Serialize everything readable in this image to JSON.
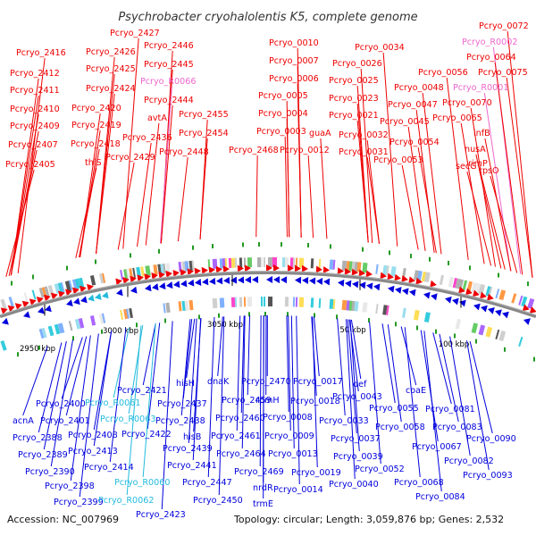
{
  "title": "Psychrobacter cryohalolentis K5, complete genome",
  "footer": {
    "accession": "Accession: NC_007969",
    "summary": "Topology: circular; Length: 3,059,876 bp; Genes: 2,532"
  },
  "colors": {
    "forward": "#ee0000",
    "reverse": "#0000dd",
    "rna_forward": "#ee66cc",
    "rna_reverse": "#22bbdd",
    "backbone": "#888888",
    "green_mark": "#229922"
  },
  "ticks": [
    {
      "text": "2950 kbp"
    },
    {
      "text": "3000 kbp"
    },
    {
      "text": "3050 kbp"
    },
    {
      "text": "50 kbp"
    },
    {
      "text": "100 kbp"
    }
  ],
  "top_labels": [
    {
      "text": "Pcryo_2427",
      "color": "#ee0000"
    },
    {
      "text": "Pcryo_2416",
      "color": "#ee0000"
    },
    {
      "text": "Pcryo_2426",
      "color": "#ee0000"
    },
    {
      "text": "Pcryo_2412",
      "color": "#ee0000"
    },
    {
      "text": "Pcryo_2425",
      "color": "#ee0000"
    },
    {
      "text": "Pcryo_2411",
      "color": "#ee0000"
    },
    {
      "text": "Pcryo_2424",
      "color": "#ee0000"
    },
    {
      "text": "Pcryo_2410",
      "color": "#ee0000"
    },
    {
      "text": "Pcryo_2420",
      "color": "#ee0000"
    },
    {
      "text": "Pcryo_2409",
      "color": "#ee0000"
    },
    {
      "text": "Pcryo_2419",
      "color": "#ee0000"
    },
    {
      "text": "Pcryo_2407",
      "color": "#ee0000"
    },
    {
      "text": "Pcryo_2418",
      "color": "#ee0000"
    },
    {
      "text": "thiS",
      "color": "#ee0000"
    },
    {
      "text": "Pcryo_2405",
      "color": "#ee0000"
    },
    {
      "text": "Pcryo_2446",
      "color": "#ee0000"
    },
    {
      "text": "Pcryo_2445",
      "color": "#ee0000"
    },
    {
      "text": "Pcryo_R0066",
      "color": "#ee66cc"
    },
    {
      "text": "Pcryo_2444",
      "color": "#ee0000"
    },
    {
      "text": "avtA",
      "color": "#ee0000"
    },
    {
      "text": "Pcryo_2455",
      "color": "#ee0000"
    },
    {
      "text": "Pcryo_2436",
      "color": "#ee0000"
    },
    {
      "text": "Pcryo_2454",
      "color": "#ee0000"
    },
    {
      "text": "Pcryo_2448",
      "color": "#ee0000"
    },
    {
      "text": "Pcryo_2429",
      "color": "#ee0000"
    },
    {
      "text": "Pcryo_2468",
      "color": "#ee0000"
    },
    {
      "text": "Pcryo_0010",
      "color": "#ee0000"
    },
    {
      "text": "Pcryo_0007",
      "color": "#ee0000"
    },
    {
      "text": "Pcryo_0006",
      "color": "#ee0000"
    },
    {
      "text": "Pcryo_0005",
      "color": "#ee0000"
    },
    {
      "text": "Pcryo_0004",
      "color": "#ee0000"
    },
    {
      "text": "Pcryo_0003",
      "color": "#ee0000"
    },
    {
      "text": "Pcryo_0012",
      "color": "#ee0000"
    },
    {
      "text": "Pcryo_0034",
      "color": "#ee0000"
    },
    {
      "text": "Pcryo_0026",
      "color": "#ee0000"
    },
    {
      "text": "Pcryo_0025",
      "color": "#ee0000"
    },
    {
      "text": "Pcryo_0023",
      "color": "#ee0000"
    },
    {
      "text": "Pcryo_0021",
      "color": "#ee0000"
    },
    {
      "text": "guaA",
      "color": "#ee0000"
    },
    {
      "text": "Pcryo_0032",
      "color": "#ee0000"
    },
    {
      "text": "Pcryo_0031",
      "color": "#ee0000"
    },
    {
      "text": "Pcryo_0072",
      "color": "#ee0000"
    },
    {
      "text": "Pcryo_R0002",
      "color": "#ee66cc"
    },
    {
      "text": "Pcryo_0064",
      "color": "#ee0000"
    },
    {
      "text": "Pcryo_0075",
      "color": "#ee0000"
    },
    {
      "text": "Pcryo_0056",
      "color": "#ee0000"
    },
    {
      "text": "Pcryo_R0001",
      "color": "#ee66cc"
    },
    {
      "text": "Pcryo_0048",
      "color": "#ee0000"
    },
    {
      "text": "Pcryo_0070",
      "color": "#ee0000"
    },
    {
      "text": "Pcryo_0047",
      "color": "#ee0000"
    },
    {
      "text": "Pcryo_0065",
      "color": "#ee0000"
    },
    {
      "text": "Pcryo_0045",
      "color": "#ee0000"
    },
    {
      "text": "infB",
      "color": "#ee0000"
    },
    {
      "text": "nusA",
      "color": "#ee0000"
    },
    {
      "text": "Pcryo_0054",
      "color": "#ee0000"
    },
    {
      "text": "rimP",
      "color": "#ee0000"
    },
    {
      "text": "Pcryo_0053",
      "color": "#ee0000"
    },
    {
      "text": "secG",
      "color": "#ee0000"
    },
    {
      "text": "rpsO",
      "color": "#ee0000"
    }
  ],
  "bottom_labels": [
    {
      "text": "Pcryo_2421",
      "color": "#0000dd"
    },
    {
      "text": "hisH",
      "color": "#0000dd"
    },
    {
      "text": "dnaK",
      "color": "#0000dd"
    },
    {
      "text": "Pcryo_2470",
      "color": "#0000dd"
    },
    {
      "text": "Pcryo_0017",
      "color": "#0000dd"
    },
    {
      "text": "def",
      "color": "#0000dd"
    },
    {
      "text": "Pcryo_2400",
      "color": "#0000dd"
    },
    {
      "text": "Pcryo_R0061",
      "color": "#22bbdd"
    },
    {
      "text": "Pcryo_2437",
      "color": "#0000dd"
    },
    {
      "text": "Pcryo_2459",
      "color": "#0000dd"
    },
    {
      "text": "rpmH",
      "color": "#0000dd"
    },
    {
      "text": "Pcryo_0018",
      "color": "#0000dd"
    },
    {
      "text": "Pcryo_0043",
      "color": "#0000dd"
    },
    {
      "text": "coaE",
      "color": "#0000dd"
    },
    {
      "text": "acnA",
      "color": "#0000dd"
    },
    {
      "text": "Pcryo_2401",
      "color": "#0000dd"
    },
    {
      "text": "Pcryo_R0063",
      "color": "#22bbdd"
    },
    {
      "text": "Pcryo_2438",
      "color": "#0000dd"
    },
    {
      "text": "Pcryo_2460",
      "color": "#0000dd"
    },
    {
      "text": "Pcryo_0008",
      "color": "#0000dd"
    },
    {
      "text": "Pcryo_0033",
      "color": "#0000dd"
    },
    {
      "text": "Pcryo_0055",
      "color": "#0000dd"
    },
    {
      "text": "Pcryo_0081",
      "color": "#0000dd"
    },
    {
      "text": "Pcryo_2388",
      "color": "#0000dd"
    },
    {
      "text": "Pcryo_2408",
      "color": "#0000dd"
    },
    {
      "text": "Pcryo_2422",
      "color": "#0000dd"
    },
    {
      "text": "hisB",
      "color": "#0000dd"
    },
    {
      "text": "Pcryo_2461",
      "color": "#0000dd"
    },
    {
      "text": "Pcryo_0009",
      "color": "#0000dd"
    },
    {
      "text": "Pcryo_0058",
      "color": "#0000dd"
    },
    {
      "text": "Pcryo_0083",
      "color": "#0000dd"
    },
    {
      "text": "Pcryo_2389",
      "color": "#0000dd"
    },
    {
      "text": "Pcryo_2413",
      "color": "#0000dd"
    },
    {
      "text": "Pcryo_2439",
      "color": "#0000dd"
    },
    {
      "text": "Pcryo_0037",
      "color": "#0000dd"
    },
    {
      "text": "Pcryo_0067",
      "color": "#0000dd"
    },
    {
      "text": "Pcryo_0090",
      "color": "#0000dd"
    },
    {
      "text": "Pcryo_2464",
      "color": "#0000dd"
    },
    {
      "text": "Pcryo_0013",
      "color": "#0000dd"
    },
    {
      "text": "Pcryo_0039",
      "color": "#0000dd"
    },
    {
      "text": "Pcryo_2390",
      "color": "#0000dd"
    },
    {
      "text": "Pcryo_2414",
      "color": "#0000dd"
    },
    {
      "text": "Pcryo_2441",
      "color": "#0000dd"
    },
    {
      "text": "Pcryo_0082",
      "color": "#0000dd"
    },
    {
      "text": "Pcryo_2469",
      "color": "#0000dd"
    },
    {
      "text": "Pcryo_0019",
      "color": "#0000dd"
    },
    {
      "text": "Pcryo_0052",
      "color": "#0000dd"
    },
    {
      "text": "Pcryo_0093",
      "color": "#0000dd"
    },
    {
      "text": "Pcryo_2398",
      "color": "#0000dd"
    },
    {
      "text": "Pcryo_R0060",
      "color": "#22bbdd"
    },
    {
      "text": "Pcryo_2447",
      "color": "#0000dd"
    },
    {
      "text": "nrdR",
      "color": "#0000dd"
    },
    {
      "text": "Pcryo_0040",
      "color": "#0000dd"
    },
    {
      "text": "Pcryo_0068",
      "color": "#0000dd"
    },
    {
      "text": "Pcryo_0014",
      "color": "#0000dd"
    },
    {
      "text": "Pcryo_2399",
      "color": "#0000dd"
    },
    {
      "text": "Pcryo_R0062",
      "color": "#22bbdd"
    },
    {
      "text": "Pcryo_2450",
      "color": "#0000dd"
    },
    {
      "text": "trmE",
      "color": "#0000dd"
    },
    {
      "text": "Pcryo_0084",
      "color": "#0000dd"
    },
    {
      "text": "Pcryo_2423",
      "color": "#0000dd"
    }
  ]
}
